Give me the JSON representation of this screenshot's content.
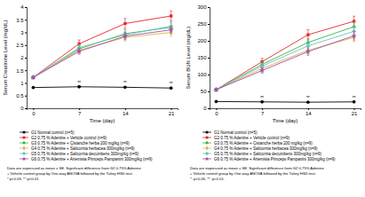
{
  "chart_data": [
    {
      "type": "line",
      "x_label": "Time (day)",
      "y_label": "Serum Creatinine Level (mg/dL)",
      "x": [
        0,
        7,
        14,
        21
      ],
      "xlim": [
        -1,
        22
      ],
      "xticks": [
        0,
        7,
        14,
        21
      ],
      "ylim": [
        0,
        4
      ],
      "yticks": [
        0,
        0.5,
        1,
        1.5,
        2,
        2.5,
        3,
        3.5,
        4
      ],
      "grid": false,
      "legend": "bottom",
      "series": [
        {
          "name": "G1 Normal control (n=5)",
          "color": "#000000",
          "marker": "circle",
          "line_style": "solid",
          "values": [
            0.82,
            0.85,
            0.83,
            0.8
          ],
          "errors": [
            0.02,
            0.03,
            0.02,
            0.02
          ],
          "significance": [
            null,
            "**",
            "**",
            "**"
          ]
        },
        {
          "name": "G2 0.75 % Adenine + Vehicle control (n=9)",
          "color": "#e8252b",
          "marker": "square",
          "line_style": "solid",
          "values": [
            1.22,
            2.55,
            3.35,
            3.65
          ],
          "errors": [
            0.03,
            0.15,
            0.2,
            0.2
          ]
        },
        {
          "name": "G3 0.75 % Adenine + Cistanche herba 200 mg/kg (n=9)",
          "color": "#3cb44b",
          "marker": "triangle",
          "line_style": "solid",
          "values": [
            1.22,
            2.35,
            2.95,
            3.2
          ],
          "errors": [
            0.03,
            0.12,
            0.15,
            0.18
          ]
        },
        {
          "name": "G4 0.75 % Adenine + Salicornia herbacea 300mg/kg (n=9)",
          "color": "#d9b44a",
          "marker": "diamond",
          "line_style": "solid",
          "values": [
            1.22,
            2.3,
            2.8,
            3.0
          ],
          "errors": [
            0.03,
            0.12,
            0.14,
            0.15
          ]
        },
        {
          "name": "G5 0.75 % Adenine + Salicornia decumbens 300mg/kg (n=9)",
          "color": "#6cc3c0",
          "marker": "cross",
          "line_style": "solid",
          "values": [
            1.22,
            2.4,
            2.9,
            3.25
          ],
          "errors": [
            0.03,
            0.12,
            0.15,
            0.16
          ]
        },
        {
          "name": "G6 0.75 % Adenine + Artemisia Princeps Pampanini 300mg/kg (n=9)",
          "color": "#a64ca6",
          "marker": "star",
          "line_style": "solid",
          "values": [
            1.22,
            2.25,
            2.85,
            3.1
          ],
          "errors": [
            0.03,
            0.12,
            0.14,
            0.15
          ]
        }
      ],
      "footnote": [
        "Data are expressed as mean ± SE. Significant difference from G2 0.75% Adenine",
        "+ Vehicle control group by One-way ANOVA followed by the Tukey HSD test.",
        "* p<0.05, ** p<0.01."
      ]
    },
    {
      "type": "line",
      "x_label": "Time (day)",
      "y_label": "Serum BUN Level (mg/dL)",
      "x": [
        0,
        7,
        14,
        21
      ],
      "xlim": [
        -1,
        22
      ],
      "xticks": [
        0,
        7,
        14,
        21
      ],
      "ylim": [
        0,
        300
      ],
      "yticks": [
        0,
        50,
        100,
        150,
        200,
        250,
        300
      ],
      "grid": false,
      "legend": "bottom",
      "series": [
        {
          "name": "G1 Normal control (n=5)",
          "color": "#000000",
          "marker": "circle",
          "line_style": "solid",
          "values": [
            20,
            19,
            18,
            19
          ],
          "errors": [
            1,
            1,
            1,
            1
          ],
          "significance": [
            null,
            "**",
            "**",
            "**"
          ]
        },
        {
          "name": "G2 0.75 % Adenine + Vehicle control (n=9)",
          "color": "#e8252b",
          "marker": "square",
          "line_style": "solid",
          "values": [
            55,
            138,
            218,
            258
          ],
          "errors": [
            2,
            10,
            15,
            15
          ]
        },
        {
          "name": "G3 0.75 % Adenine + Cistanche herba 200 mg/kg (n=9)",
          "color": "#3cb44b",
          "marker": "triangle",
          "line_style": "solid",
          "values": [
            55,
            130,
            195,
            242
          ],
          "errors": [
            2,
            9,
            12,
            14
          ]
        },
        {
          "name": "G4 0.75 % Adenine + Salicornia herbacea 300mg/kg (n=9)",
          "color": "#d9b44a",
          "marker": "diamond",
          "line_style": "solid",
          "values": [
            55,
            118,
            172,
            210
          ],
          "errors": [
            2,
            8,
            12,
            13
          ]
        },
        {
          "name": "G5 0.75 % Adenine + Salicornia decumbens 300mg/kg (n=9)",
          "color": "#6cc3c0",
          "marker": "cross",
          "line_style": "solid",
          "values": [
            55,
            125,
            185,
            228
          ],
          "errors": [
            2,
            9,
            12,
            14
          ]
        },
        {
          "name": "G6 0.75 % Adenine + Artemisia Princeps Pampanini 300mg/kg (n=9)",
          "color": "#a64ca6",
          "marker": "star",
          "line_style": "solid",
          "values": [
            55,
            112,
            168,
            215
          ],
          "errors": [
            2,
            8,
            11,
            13
          ]
        }
      ],
      "footnote": [
        "Data are expressed as mean ± SE. Significant difference from G2 0.75% Adenine",
        "+ Vehicle control group by One-way ANOVA followed by the Tukey HSD test.",
        "*: p<0.05, **: p<0.01."
      ]
    }
  ]
}
